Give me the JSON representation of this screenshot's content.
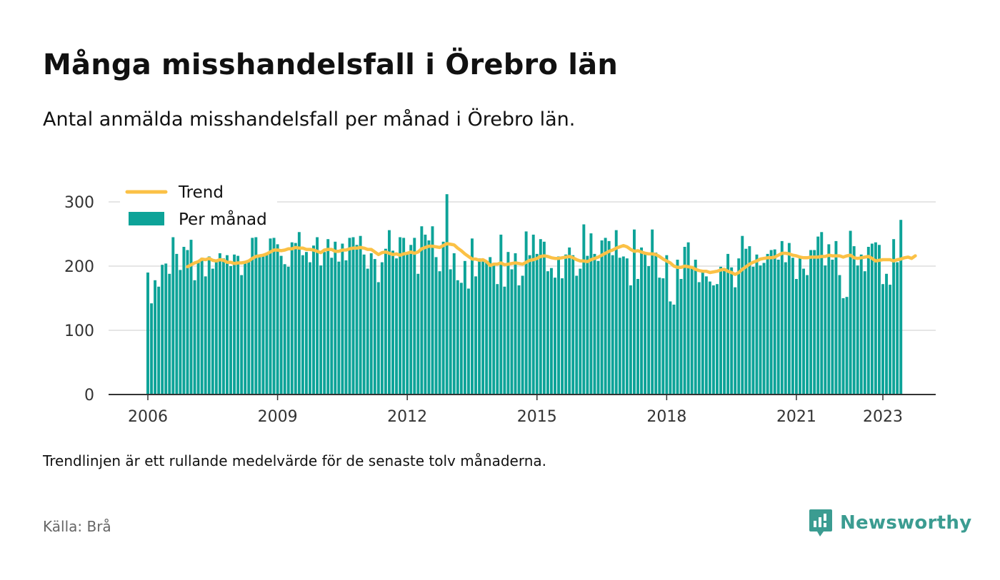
{
  "title": "Många misshandelsfall i Örebro län",
  "subtitle": "Antal anmälda misshandelsfall per månad i Örebro län.",
  "note": "Trendlinjen är ett rullande medelvärde för de senaste tolv månaderna.",
  "source": "Källa: Brå",
  "brand": {
    "name": "Newsworthy",
    "color": "#3b9c91",
    "icon": "newsworthy-logo-icon"
  },
  "colors": {
    "bar": "#0da398",
    "trend": "#fbc146",
    "grid": "#dddddd",
    "axis": "#333333"
  },
  "chart_data": {
    "type": "bar",
    "x_start": "2006-01",
    "x_end": "2023-05",
    "xticks": [
      "2006",
      "2009",
      "2012",
      "2015",
      "2018",
      "2021",
      "2023"
    ],
    "yticks": [
      0,
      100,
      200,
      300
    ],
    "ylim": [
      0,
      320
    ],
    "grid": true,
    "legend_position": "top-left",
    "legend": {
      "trend": "Trend",
      "monthly": "Per månad"
    },
    "series": [
      {
        "name": "Per månad",
        "type": "bar",
        "values": [
          190,
          142,
          178,
          168,
          202,
          204,
          188,
          245,
          219,
          194,
          230,
          225,
          241,
          178,
          206,
          213,
          184,
          215,
          196,
          208,
          220,
          212,
          217,
          200,
          218,
          216,
          186,
          206,
          209,
          244,
          245,
          216,
          218,
          221,
          243,
          244,
          234,
          216,
          203,
          199,
          237,
          236,
          253,
          217,
          222,
          206,
          232,
          245,
          201,
          222,
          242,
          213,
          238,
          207,
          235,
          209,
          244,
          245,
          233,
          247,
          218,
          196,
          220,
          211,
          175,
          206,
          227,
          256,
          224,
          212,
          245,
          244,
          219,
          233,
          244,
          188,
          262,
          249,
          240,
          262,
          214,
          192,
          238,
          312,
          195,
          220,
          178,
          174,
          208,
          165,
          243,
          184,
          212,
          207,
          208,
          214,
          203,
          172,
          249,
          168,
          222,
          195,
          220,
          170,
          185,
          254,
          217,
          249,
          219,
          242,
          238,
          192,
          197,
          182,
          215,
          181,
          218,
          229,
          217,
          185,
          196,
          265,
          216,
          251,
          219,
          208,
          240,
          244,
          239,
          217,
          256,
          213,
          215,
          212,
          170,
          257,
          180,
          229,
          220,
          200,
          257,
          221,
          182,
          181,
          217,
          145,
          140,
          210,
          180,
          230,
          237,
          200,
          210,
          175,
          193,
          184,
          176,
          170,
          172,
          199,
          196,
          219,
          198,
          167,
          212,
          247,
          227,
          231,
          199,
          218,
          201,
          205,
          219,
          225,
          226,
          210,
          239,
          206,
          236,
          213,
          180,
          212,
          196,
          186,
          225,
          225,
          246,
          253,
          201,
          234,
          210,
          239,
          186,
          150,
          152,
          255,
          231,
          201,
          218,
          192,
          230,
          235,
          237,
          233,
          172,
          188,
          171,
          242,
          206,
          272
        ]
      },
      {
        "name": "Trend",
        "type": "line",
        "values": [
          null,
          null,
          null,
          null,
          null,
          null,
          null,
          null,
          null,
          null,
          null,
          199,
          202,
          205,
          207,
          211,
          210,
          212,
          209,
          208,
          210,
          209,
          206,
          206,
          204,
          205,
          205,
          206,
          208,
          212,
          215,
          216,
          217,
          219,
          222,
          225,
          225,
          224,
          225,
          227,
          227,
          229,
          228,
          228,
          226,
          226,
          225,
          223,
          221,
          225,
          226,
          226,
          223,
          223,
          225,
          225,
          227,
          228,
          228,
          229,
          228,
          226,
          226,
          222,
          218,
          221,
          222,
          220,
          218,
          219,
          217,
          219,
          220,
          222,
          220,
          222,
          227,
          229,
          231,
          231,
          230,
          229,
          232,
          235,
          234,
          233,
          228,
          224,
          219,
          215,
          211,
          211,
          209,
          210,
          207,
          201,
          203,
          203,
          205,
          202,
          203,
          204,
          205,
          204,
          203,
          206,
          209,
          210,
          212,
          215,
          216,
          215,
          213,
          212,
          212,
          213,
          214,
          215,
          213,
          210,
          208,
          208,
          207,
          210,
          212,
          214,
          217,
          220,
          223,
          225,
          228,
          230,
          232,
          230,
          226,
          223,
          224,
          222,
          220,
          219,
          219,
          218,
          215,
          211,
          208,
          205,
          200,
          198,
          198,
          200,
          199,
          198,
          195,
          193,
          192,
          192,
          190,
          191,
          192,
          194,
          195,
          192,
          190,
          187,
          190,
          195,
          199,
          203,
          206,
          208,
          211,
          212,
          213,
          213,
          214,
          217,
          220,
          220,
          219,
          217,
          216,
          214,
          213,
          213,
          214,
          214,
          214,
          215,
          215,
          217,
          216,
          216,
          216,
          214,
          216,
          217,
          213,
          212,
          213,
          214,
          215,
          212,
          208,
          209,
          210,
          210,
          210,
          208,
          210,
          211,
          213,
          214,
          212,
          216
        ]
      }
    ]
  }
}
